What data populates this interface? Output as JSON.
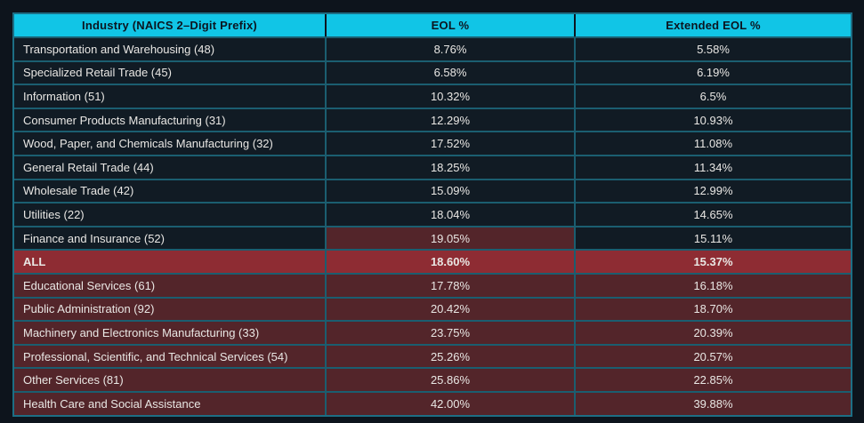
{
  "colors": {
    "page_background": "#0d141c",
    "header_background": "#11c5e6",
    "header_text": "#0b1520",
    "row_navy": "#111b24",
    "row_dark_red": "#53252a",
    "row_accent_red": "#8e2c33",
    "grid_border": "#1b5e70",
    "outer_border": "#1d6e84",
    "body_text": "#e9e7e4"
  },
  "table": {
    "columns": [
      "Industry (NAICS 2–Digit Prefix)",
      "EOL %",
      "Extended EOL %"
    ],
    "rows": [
      {
        "industry": "Transportation and Warehousing (48)",
        "eol": "8.76%",
        "extended_eol": "5.58%",
        "cell_colors": [
          "navy",
          "navy",
          "navy"
        ],
        "bold": false
      },
      {
        "industry": "Specialized Retail Trade (45)",
        "eol": "6.58%",
        "extended_eol": "6.19%",
        "cell_colors": [
          "navy",
          "navy",
          "navy"
        ],
        "bold": false
      },
      {
        "industry": "Information (51)",
        "eol": "10.32%",
        "extended_eol": "6.5%",
        "cell_colors": [
          "navy",
          "navy",
          "navy"
        ],
        "bold": false
      },
      {
        "industry": "Consumer Products Manufacturing (31)",
        "eol": "12.29%",
        "extended_eol": "10.93%",
        "cell_colors": [
          "navy",
          "navy",
          "navy"
        ],
        "bold": false
      },
      {
        "industry": "Wood, Paper, and Chemicals Manufacturing (32)",
        "eol": "17.52%",
        "extended_eol": "11.08%",
        "cell_colors": [
          "navy",
          "navy",
          "navy"
        ],
        "bold": false
      },
      {
        "industry": "General Retail Trade (44)",
        "eol": "18.25%",
        "extended_eol": "11.34%",
        "cell_colors": [
          "navy",
          "navy",
          "navy"
        ],
        "bold": false
      },
      {
        "industry": "Wholesale Trade (42)",
        "eol": "15.09%",
        "extended_eol": "12.99%",
        "cell_colors": [
          "navy",
          "navy",
          "navy"
        ],
        "bold": false
      },
      {
        "industry": "Utilities (22)",
        "eol": "18.04%",
        "extended_eol": "14.65%",
        "cell_colors": [
          "navy",
          "navy",
          "navy"
        ],
        "bold": false
      },
      {
        "industry": "Finance and Insurance (52)",
        "eol": "19.05%",
        "extended_eol": "15.11%",
        "cell_colors": [
          "navy",
          "dark_red",
          "navy"
        ],
        "bold": false
      },
      {
        "industry": "ALL",
        "eol": "18.60%",
        "extended_eol": "15.37%",
        "cell_colors": [
          "accent_red",
          "accent_red",
          "accent_red"
        ],
        "bold": true
      },
      {
        "industry": "Educational Services (61)",
        "eol": "17.78%",
        "extended_eol": "16.18%",
        "cell_colors": [
          "dark_red",
          "dark_red",
          "dark_red"
        ],
        "bold": false
      },
      {
        "industry": "Public Administration (92)",
        "eol": "20.42%",
        "extended_eol": "18.70%",
        "cell_colors": [
          "dark_red",
          "dark_red",
          "dark_red"
        ],
        "bold": false
      },
      {
        "industry": "Machinery and Electronics Manufacturing (33)",
        "eol": "23.75%",
        "extended_eol": "20.39%",
        "cell_colors": [
          "dark_red",
          "dark_red",
          "dark_red"
        ],
        "bold": false
      },
      {
        "industry": "Professional, Scientific, and Technical Services (54)",
        "eol": "25.26%",
        "extended_eol": "20.57%",
        "cell_colors": [
          "dark_red",
          "dark_red",
          "dark_red"
        ],
        "bold": false
      },
      {
        "industry": "Other Services (81)",
        "eol": "25.86%",
        "extended_eol": "22.85%",
        "cell_colors": [
          "dark_red",
          "dark_red",
          "dark_red"
        ],
        "bold": false
      },
      {
        "industry": "Health Care and Social Assistance",
        "eol": "42.00%",
        "extended_eol": "39.88%",
        "cell_colors": [
          "dark_red",
          "dark_red",
          "dark_red"
        ],
        "bold": false
      }
    ]
  },
  "chart_data": {
    "type": "table",
    "title": "",
    "columns": [
      "Industry (NAICS 2–Digit Prefix)",
      "EOL %",
      "Extended EOL %"
    ],
    "rows": [
      [
        "Transportation and Warehousing (48)",
        8.76,
        5.58
      ],
      [
        "Specialized Retail Trade (45)",
        6.58,
        6.19
      ],
      [
        "Information (51)",
        10.32,
        6.5
      ],
      [
        "Consumer Products Manufacturing (31)",
        12.29,
        10.93
      ],
      [
        "Wood, Paper, and Chemicals Manufacturing (32)",
        17.52,
        11.08
      ],
      [
        "General Retail Trade (44)",
        18.25,
        11.34
      ],
      [
        "Wholesale Trade (42)",
        15.09,
        12.99
      ],
      [
        "Utilities (22)",
        18.04,
        14.65
      ],
      [
        "Finance and Insurance (52)",
        19.05,
        15.11
      ],
      [
        "ALL",
        18.6,
        15.37
      ],
      [
        "Educational Services (61)",
        17.78,
        16.18
      ],
      [
        "Public Administration (92)",
        20.42,
        18.7
      ],
      [
        "Machinery and Electronics Manufacturing (33)",
        23.75,
        20.39
      ],
      [
        "Professional, Scientific, and Technical Services (54)",
        25.26,
        20.57
      ],
      [
        "Other Services (81)",
        25.86,
        22.85
      ],
      [
        "Health Care and Social Assistance",
        42.0,
        39.88
      ]
    ],
    "units": "percent",
    "notes_layout": "rows sorted ascending by Extended EOL %; ALL summary row highlighted"
  }
}
